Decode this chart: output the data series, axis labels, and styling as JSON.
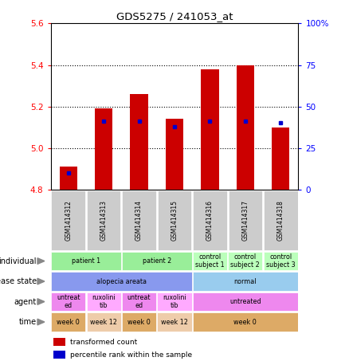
{
  "title": "GDS5275 / 241053_at",
  "samples": [
    "GSM1414312",
    "GSM1414313",
    "GSM1414314",
    "GSM1414315",
    "GSM1414316",
    "GSM1414317",
    "GSM1414318"
  ],
  "transformed_count": [
    4.91,
    5.19,
    5.26,
    5.14,
    5.38,
    5.4,
    5.1
  ],
  "percentile_rank": [
    10,
    41,
    41,
    38,
    41,
    41,
    40
  ],
  "ylim_left": [
    4.8,
    5.6
  ],
  "ylim_right": [
    0,
    100
  ],
  "yticks_left": [
    4.8,
    5.0,
    5.2,
    5.4,
    5.6
  ],
  "yticks_right": [
    0,
    25,
    50,
    75,
    100
  ],
  "bar_color": "#cc0000",
  "dot_color": "#0000cc",
  "bar_width": 0.5,
  "rows": [
    {
      "label": "individual",
      "cells": [
        {
          "text": "patient 1",
          "span": 2,
          "color": "#99ee99"
        },
        {
          "text": "patient 2",
          "span": 2,
          "color": "#99ee99"
        },
        {
          "text": "control\nsubject 1",
          "span": 1,
          "color": "#bbffbb"
        },
        {
          "text": "control\nsubject 2",
          "span": 1,
          "color": "#bbffbb"
        },
        {
          "text": "control\nsubject 3",
          "span": 1,
          "color": "#bbffbb"
        }
      ]
    },
    {
      "label": "disease state",
      "cells": [
        {
          "text": "alopecia areata",
          "span": 4,
          "color": "#8899ee"
        },
        {
          "text": "normal",
          "span": 3,
          "color": "#99ccee"
        }
      ]
    },
    {
      "label": "agent",
      "cells": [
        {
          "text": "untreat\ned",
          "span": 1,
          "color": "#ee88ee"
        },
        {
          "text": "ruxolini\ntib",
          "span": 1,
          "color": "#ffaaff"
        },
        {
          "text": "untreat\ned",
          "span": 1,
          "color": "#ee88ee"
        },
        {
          "text": "ruxolini\ntib",
          "span": 1,
          "color": "#ffaaff"
        },
        {
          "text": "untreated",
          "span": 3,
          "color": "#ee88ee"
        }
      ]
    },
    {
      "label": "time",
      "cells": [
        {
          "text": "week 0",
          "span": 1,
          "color": "#ddaa66"
        },
        {
          "text": "week 12",
          "span": 1,
          "color": "#eeccaa"
        },
        {
          "text": "week 0",
          "span": 1,
          "color": "#ddaa66"
        },
        {
          "text": "week 12",
          "span": 1,
          "color": "#eeccaa"
        },
        {
          "text": "week 0",
          "span": 3,
          "color": "#ddaa66"
        }
      ]
    }
  ],
  "legend": [
    {
      "color": "#cc0000",
      "label": "transformed count"
    },
    {
      "color": "#0000cc",
      "label": "percentile rank within the sample"
    }
  ],
  "figsize": [
    4.38,
    4.53
  ],
  "dpi": 100
}
